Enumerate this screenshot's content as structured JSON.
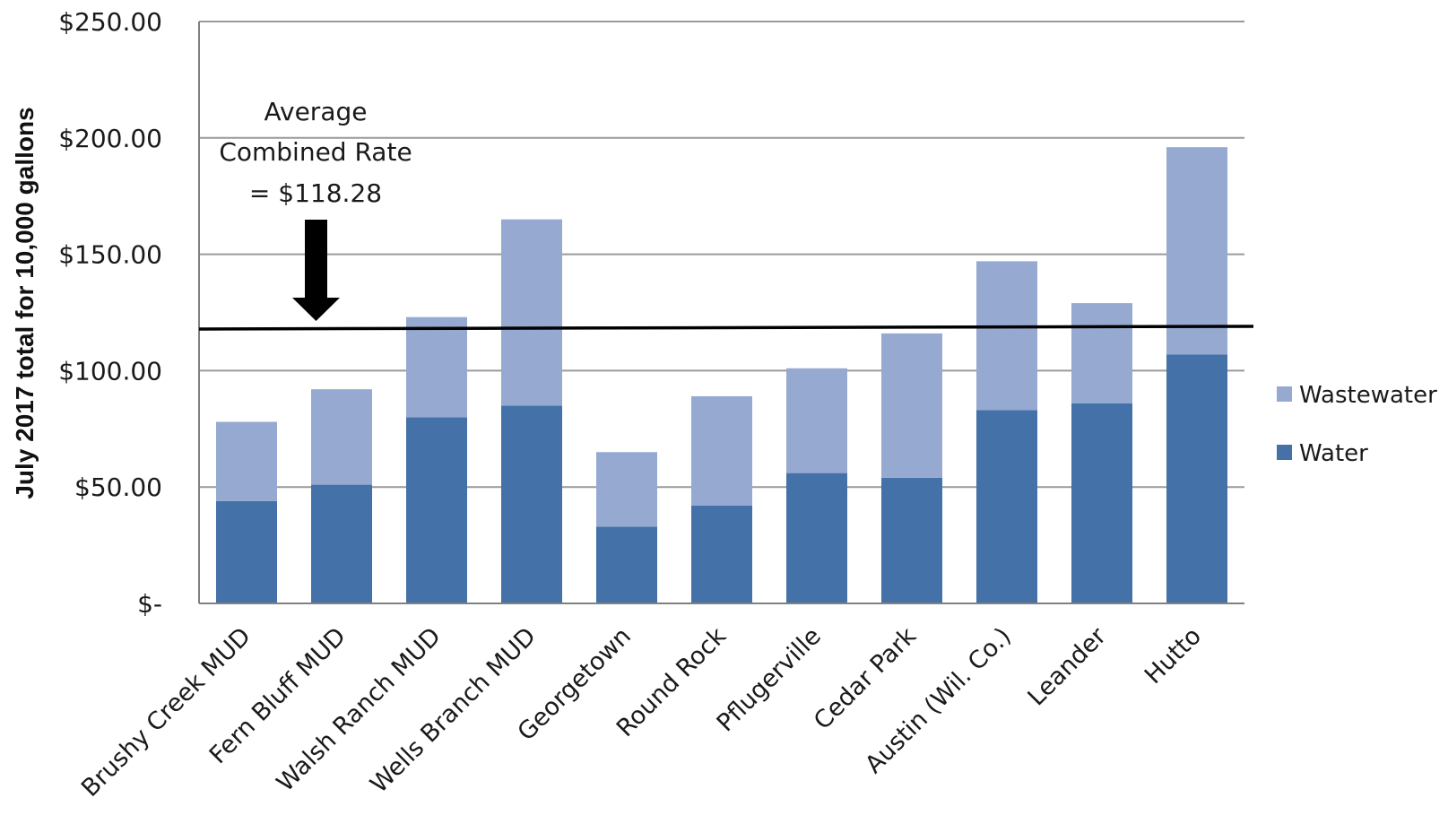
{
  "chart_data": {
    "type": "bar",
    "stacked": true,
    "title": "",
    "xlabel": "",
    "ylabel": "July  2017  total for 10,000 gallons",
    "ylim": [
      0,
      250
    ],
    "y_ticks": [
      0,
      50,
      100,
      150,
      200,
      250
    ],
    "y_tick_labels": [
      "$-",
      "$50.00",
      "$100.00",
      "$150.00",
      "$200.00",
      "$250.00"
    ],
    "grid": true,
    "legend_position": "right",
    "categories": [
      "Brushy Creek MUD",
      "Fern Bluff MUD",
      "Walsh Ranch MUD",
      "Wells Branch MUD",
      "Georgetown",
      "Round Rock",
      "Pflugerville",
      "Cedar Park",
      "Austin (Wil. Co.)",
      "Leander",
      "Hutto"
    ],
    "series": [
      {
        "name": "Water",
        "color": "#4472a8",
        "values": [
          44,
          51,
          80,
          85,
          33,
          42,
          56,
          54,
          83,
          86,
          107
        ]
      },
      {
        "name": "Wastewater",
        "color": "#95a9d1",
        "values": [
          34,
          41,
          43,
          80,
          32,
          47,
          45,
          62,
          64,
          43,
          89
        ]
      }
    ],
    "reference_line": {
      "value": 118.28,
      "color": "#000000"
    },
    "annotation": {
      "lines": [
        "Average",
        "Combined Rate",
        "= $118.28"
      ]
    }
  }
}
